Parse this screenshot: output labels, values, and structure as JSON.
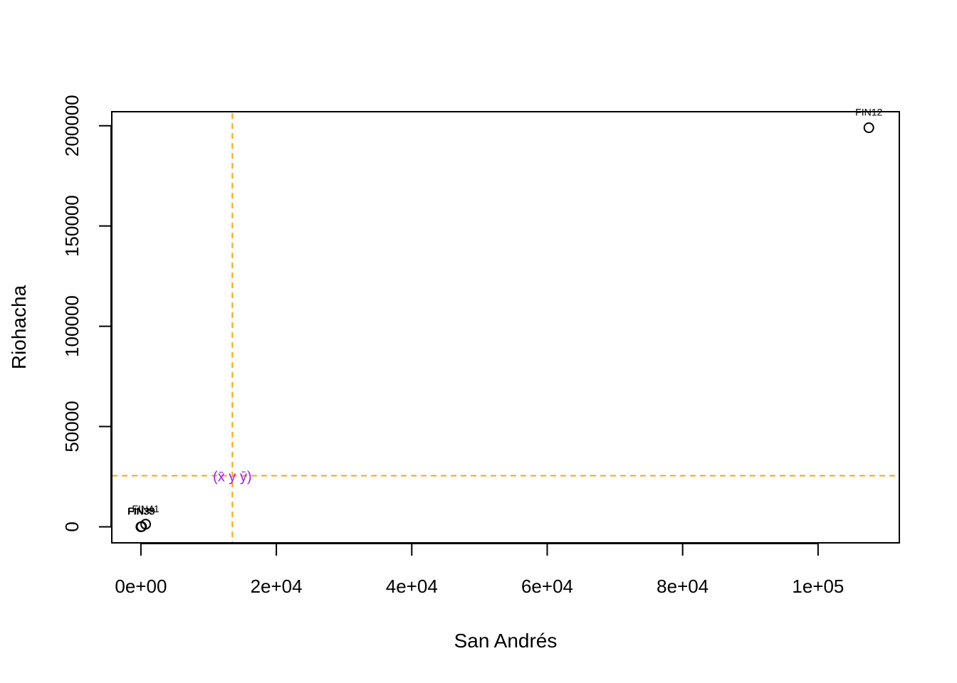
{
  "chart_data": {
    "type": "scatter",
    "title": "",
    "xlabel": "San Andrés",
    "ylabel": "Riohacha",
    "xlim": [
      -4300,
      112000
    ],
    "ylim": [
      -8000,
      207000
    ],
    "x_ticks": [
      {
        "value": 0,
        "label": "0e+00"
      },
      {
        "value": 20000,
        "label": "2e+04"
      },
      {
        "value": 40000,
        "label": "4e+04"
      },
      {
        "value": 60000,
        "label": "6e+04"
      },
      {
        "value": 80000,
        "label": "8e+04"
      },
      {
        "value": 100000,
        "label": "1e+05"
      }
    ],
    "y_ticks": [
      {
        "value": 0,
        "label": "0"
      },
      {
        "value": 50000,
        "label": "50000"
      },
      {
        "value": 100000,
        "label": "100000"
      },
      {
        "value": 150000,
        "label": "150000"
      },
      {
        "value": 200000,
        "label": "200000"
      }
    ],
    "points": [
      {
        "x": 107500,
        "y": 199000,
        "label": "FIN12"
      },
      {
        "x": 700,
        "y": 1300,
        "label": "FIN41"
      },
      {
        "x": 100,
        "y": 100,
        "label": "FIN39"
      },
      {
        "x": 0,
        "y": 0,
        "label": "FIN38"
      }
    ],
    "mean_lines": {
      "x": 13500,
      "y": 25500,
      "color": "#FFA500"
    },
    "mean_label": {
      "text": "(x̄ y ȳ)",
      "color": "#A020F0"
    },
    "grid": false,
    "point_color": "#000000"
  }
}
